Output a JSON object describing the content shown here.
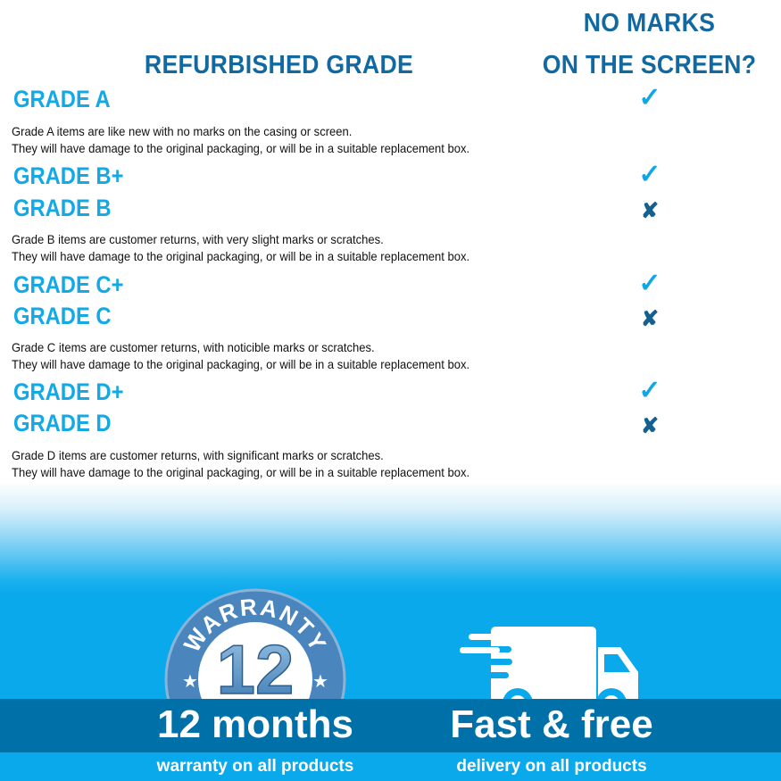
{
  "header": {
    "left": "REFURBISHED GRADE",
    "right_line1": "NO MARKS",
    "right_line2": "ON THE SCREEN?"
  },
  "grades": [
    {
      "label": "GRADE A",
      "no_marks": true,
      "icon": "check-icon"
    },
    {
      "label": "GRADE B+",
      "no_marks": true,
      "icon": "check-icon"
    },
    {
      "label": "GRADE B",
      "no_marks": false,
      "icon": "cross-icon"
    },
    {
      "label": "GRADE C+",
      "no_marks": true,
      "icon": "check-icon"
    },
    {
      "label": "GRADE C",
      "no_marks": false,
      "icon": "cross-icon"
    },
    {
      "label": "GRADE D+",
      "no_marks": true,
      "icon": "check-icon"
    },
    {
      "label": "GRADE D",
      "no_marks": false,
      "icon": "cross-icon"
    }
  ],
  "descriptions": [
    {
      "line1": "Grade A items are like new with no marks on the casing or screen.",
      "line2": "They will have damage to the original packaging, or will be in a suitable replacement box."
    },
    {
      "line1": "Grade B items are customer returns, with very slight marks or scratches.",
      "line2": "They will have damage to the original packaging, or will be in a suitable replacement box."
    },
    {
      "line1": "Grade C items are customer returns, with noticible marks or scratches.",
      "line2": "They will have damage to the original packaging, or will be in a suitable replacement box."
    },
    {
      "line1": "Grade D items are customer returns, with significant marks or scratches.",
      "line2": "They will have damage to the original packaging, or will be in a suitable replacement box."
    }
  ],
  "marks": {
    "check": "✓",
    "cross": "✘"
  },
  "footer": {
    "badge_text": "WARRANTY",
    "badge_number": "12",
    "warranty_title": "12 months",
    "warranty_sub": "warranty on all products",
    "delivery_title": "Fast & free",
    "delivery_sub": "delivery on all products"
  },
  "colors": {
    "grade": "#13a8e6",
    "header": "#1268a0",
    "band": "#0070a8",
    "blue": "#0aa9ec"
  }
}
